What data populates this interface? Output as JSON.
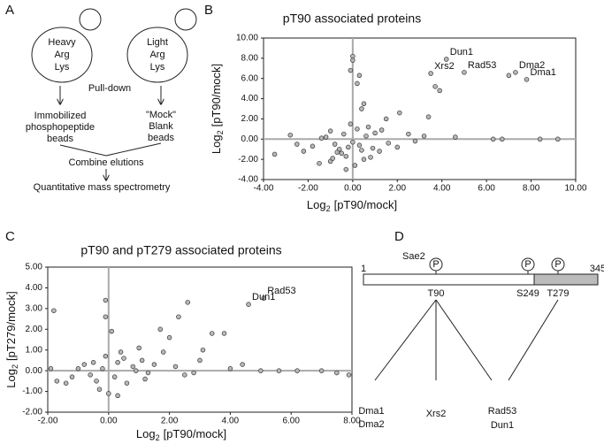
{
  "panel_labels": [
    "A",
    "B",
    "C",
    "D"
  ],
  "panels": {
    "A": {
      "heavy": [
        "Heavy",
        "Arg",
        "Lys"
      ],
      "light": [
        "Light",
        "Arg",
        "Lys"
      ],
      "pulldown": "Pull-down",
      "left_beads": [
        "Immobilized",
        "phosphopeptide",
        "beads"
      ],
      "right_beads": [
        "\"Mock\"",
        "Blank",
        "beads"
      ],
      "combine": "Combine elutions",
      "ms": "Quantitative mass spectrometry"
    },
    "D": {
      "protein": "Sae2",
      "start": "1",
      "end": "345",
      "phospho": "P",
      "sites": [
        "T90",
        "S249",
        "T279"
      ],
      "targets": {
        "dma": [
          "Dma1",
          "Dma2"
        ],
        "xrs": "Xrs2",
        "rad_dun": [
          "Rad53",
          "Dun1"
        ]
      }
    }
  },
  "chart_data": [
    {
      "type": "scatter",
      "title": "pT90 associated proteins",
      "xlabel": [
        "Log",
        "2",
        "[pT90/mock]"
      ],
      "ylabel": [
        "Log",
        "2",
        "[pT90/mock]"
      ],
      "color": "#b8b8b8",
      "x": [
        0,
        0,
        -0.1,
        0.3,
        0.2,
        3.9,
        3.7,
        0.4,
        0.5,
        2.1,
        3.4,
        1.5,
        9.2,
        8.4,
        6.7,
        6.3,
        4.6,
        3.2,
        2.5,
        -3.5,
        -2.8,
        -2.2,
        -1.5,
        -1,
        -0.3,
        0.1,
        0.8,
        1.2,
        -0.5,
        -0.2,
        0.3,
        -0.8,
        0.6,
        -1.2,
        1,
        -0.4,
        0.2,
        -0.6,
        0,
        1.6,
        -1.8,
        2,
        -0.1,
        0.4,
        -1,
        7,
        -0.3,
        0.9,
        -1.4,
        1.3,
        -0.7,
        0.5,
        2.8,
        -2.5,
        0.7,
        -0.9
      ],
      "values": [
        8.2,
        7.8,
        6.8,
        6.3,
        5.5,
        4.8,
        5.2,
        3,
        3.5,
        2.6,
        2.2,
        2,
        0,
        0,
        0,
        0,
        0.2,
        0.3,
        0.5,
        -1.5,
        0.4,
        -1.2,
        -2.4,
        -2.2,
        -3,
        -2.6,
        -1.8,
        -1.2,
        -1.4,
        -0.8,
        -0.6,
        -0.5,
        0.3,
        0.2,
        0.6,
        0.5,
        1,
        -1,
        -0.3,
        -0.4,
        -0.7,
        -0.8,
        1.5,
        -1.1,
        0.8,
        6.3,
        -1.7,
        -0.9,
        0.1,
        0.9,
        -1.3,
        -2,
        -0.2,
        -0.5,
        1.2,
        -1.9
      ],
      "annotations": [
        {
          "text": "Dun1",
          "x": 4.2,
          "y": 7.9
        },
        {
          "text": "Xrs2",
          "x": 3.5,
          "y": 6.5
        },
        {
          "text": "Rad53",
          "x": 5,
          "y": 6.6
        },
        {
          "text": "Dma2",
          "x": 7.3,
          "y": 6.6
        },
        {
          "text": "Dma1",
          "x": 7.8,
          "y": 5.9
        }
      ],
      "xlim": [
        -4,
        10
      ],
      "ylim": [
        -4,
        10
      ],
      "xticks": [
        {
          "value": -4,
          "label": "-4.00"
        },
        {
          "value": -2,
          "label": "-2.00"
        },
        {
          "value": 0,
          "label": "0.00"
        },
        {
          "value": 2,
          "label": "2.00"
        },
        {
          "value": 4,
          "label": "4.00"
        },
        {
          "value": 6,
          "label": "6.00"
        },
        {
          "value": 8,
          "label": "8.00"
        },
        {
          "value": 10,
          "label": "10.00"
        }
      ],
      "yticks": [
        {
          "value": -4,
          "label": "-4.00"
        },
        {
          "value": -2,
          "label": "-2.00"
        },
        {
          "value": 0,
          "label": "0.00"
        },
        {
          "value": 2,
          "label": "2.00"
        },
        {
          "value": 4,
          "label": "4.00"
        },
        {
          "value": 6,
          "label": "6.00"
        },
        {
          "value": 8,
          "label": "8.00"
        },
        {
          "value": 10,
          "label": "10.00"
        }
      ]
    },
    {
      "type": "scatter",
      "title": "pT90 and pT279 associated proteins",
      "xlabel": [
        "Log",
        "2",
        "[pT90/mock]"
      ],
      "ylabel": [
        "Log",
        "2",
        "[pT279/mock]"
      ],
      "color": "#b8b8b8",
      "x": [
        -1.8,
        -0.1,
        -0.1,
        2.6,
        2.3,
        1.7,
        2,
        3.4,
        3.8,
        3.1,
        1.8,
        4.4,
        5,
        5.6,
        6.2,
        7,
        7.5,
        7.9,
        -1.7,
        -1.4,
        0,
        0.3,
        -0.3,
        2.5,
        1.2,
        0.5,
        -0.5,
        0.8,
        -1,
        1.5,
        0.2,
        -0.2,
        -0.6,
        0.4,
        -1.9,
        3,
        1,
        0.1,
        4,
        -0.4,
        0.6,
        -0.8,
        1.3,
        0.9,
        -1.2,
        2.2,
        0.3,
        -0.1,
        1.1,
        2.8
      ],
      "values": [
        2.9,
        3.4,
        2.6,
        3.3,
        2.6,
        2,
        1.6,
        1.8,
        1.8,
        1,
        0.9,
        0.3,
        0,
        0,
        0,
        0,
        -0.1,
        -0.2,
        -0.5,
        -0.6,
        -1.1,
        -1.2,
        -0.9,
        -0.2,
        -0.4,
        0.6,
        0.4,
        0.2,
        0.1,
        0.3,
        -0.3,
        0.1,
        -0.2,
        0.9,
        0.1,
        0.5,
        1.1,
        1.9,
        0.1,
        -0.5,
        -0.6,
        0.3,
        -0.1,
        0,
        -0.3,
        0.2,
        0.4,
        0.7,
        0.5,
        -0.1
      ],
      "annotations": [
        {
          "text": "Rad53",
          "x": 5.1,
          "y": 3.5
        },
        {
          "text": "Dun1",
          "x": 4.6,
          "y": 3.2
        }
      ],
      "xlim": [
        -2,
        8
      ],
      "ylim": [
        -2,
        5
      ],
      "xticks": [
        {
          "value": -2,
          "label": "-2.00"
        },
        {
          "value": 0,
          "label": "0.00"
        },
        {
          "value": 2,
          "label": "2.00"
        },
        {
          "value": 4,
          "label": "4.00"
        },
        {
          "value": 6,
          "label": "6.00"
        },
        {
          "value": 8,
          "label": "8.00"
        }
      ],
      "yticks": [
        {
          "value": -2,
          "label": "-2.00"
        },
        {
          "value": -1,
          "label": "-1.00"
        },
        {
          "value": 0,
          "label": "0.00"
        },
        {
          "value": 1,
          "label": "1.00"
        },
        {
          "value": 2,
          "label": "2.00"
        },
        {
          "value": 3,
          "label": "3.00"
        },
        {
          "value": 4,
          "label": "4.00"
        },
        {
          "value": 5,
          "label": "5.00"
        }
      ]
    }
  ]
}
